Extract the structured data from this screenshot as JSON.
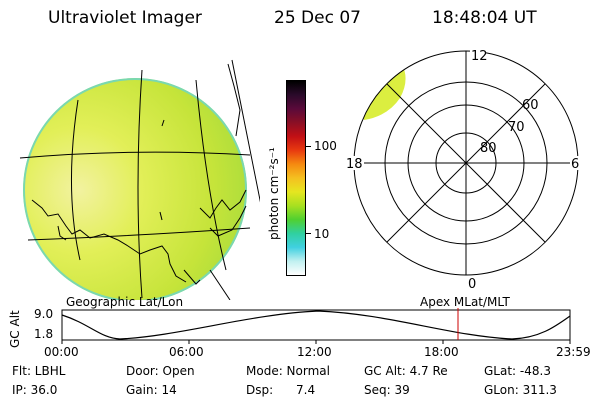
{
  "header": {
    "title": "Ultraviolet Imager",
    "date": "25 Dec 07",
    "time": "18:48:04 UT"
  },
  "colorbar": {
    "unit_label": "photon cm⁻²s⁻¹",
    "tick_labels": [
      "100",
      "10"
    ],
    "colors": [
      "#000000",
      "#2a0a2a",
      "#5a0a3a",
      "#8a0f25",
      "#c20f15",
      "#e83a10",
      "#f58a10",
      "#f5c020",
      "#e6e620",
      "#a8e020",
      "#50d030",
      "#30d0a0",
      "#40d0e0",
      "#c0f0f0",
      "#ffffff"
    ]
  },
  "map": {
    "label": "Geographic Lat/Lon",
    "fill_color": "#d8ee3c"
  },
  "polar": {
    "label": "Apex MLat/MLT",
    "mlt_labels": {
      "top": "12",
      "left": "18",
      "right": "6",
      "bottom": "0"
    },
    "lat_labels": [
      "60",
      "70",
      "80"
    ]
  },
  "altitude_plot": {
    "ylabel": "GC Alt",
    "y_ticks": [
      "9.0",
      "1.8"
    ],
    "x_ticks": [
      "00:00",
      "06:00",
      "12:00",
      "18:00",
      "23:59"
    ],
    "current_marker_color": "#cc0000"
  },
  "footer": {
    "row1": {
      "filter": "Flt: LBHL",
      "door": "Door: Open",
      "mode": "Mode: Normal",
      "gc_alt": "GC Alt: 4.7 Re",
      "glat": "GLat: -48.3"
    },
    "row2": {
      "ip": "IP: 36.0",
      "gain": "Gain: 14",
      "dsp_label": "Dsp:",
      "dsp_value": "7.4",
      "seq": "Seq: 39",
      "glon": "GLon: 311.3"
    }
  }
}
